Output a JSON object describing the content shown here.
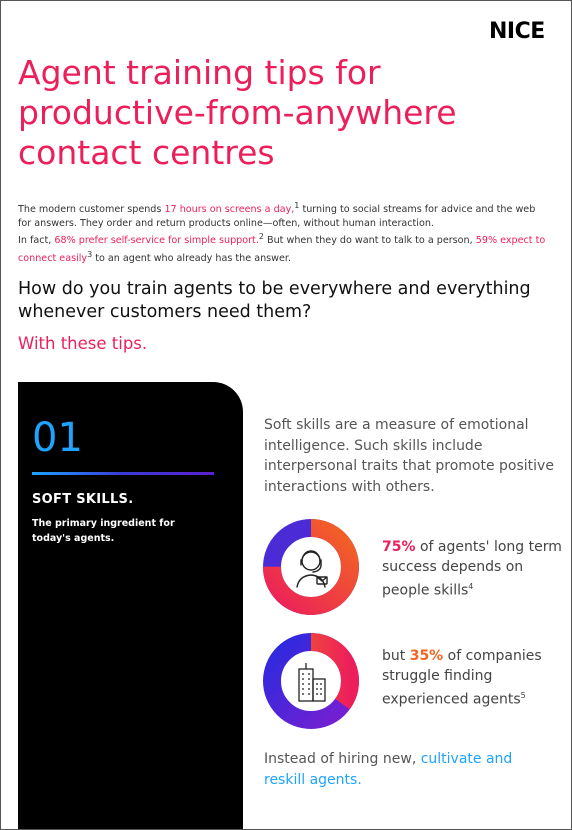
{
  "logo": {
    "text": "NICE"
  },
  "title": {
    "line1": "Agent training tips for",
    "line2": "productive-from-anywhere",
    "line3": "contact centres"
  },
  "intro": {
    "p1_a": "The modern customer spends ",
    "p1_hl": "17 hours on screens a day,",
    "p1_sup": "1",
    "p1_b": " turning to social streams for advice and the web for answers. They order and return products online—often, without human interaction.",
    "p2_a": "In fact, ",
    "p2_hl1": "68% prefer self-service for simple support.",
    "p2_sup1": "2",
    "p2_b": " But when they do want to talk to a person, ",
    "p2_hl2": "59% expect to connect easily",
    "p2_sup2": "3",
    "p2_c": " to an agent who already has the answer."
  },
  "question": "How do you train agents to be everywhere and everything whenever customers need them?",
  "tips_label": "With these tips.",
  "tip": {
    "number": "01",
    "heading": "SOFT SKILLS.",
    "subheading": "The primary ingredient for today's agents.",
    "description": "Soft skills are a measure of emotional intelligence. Such skills include interpersonal traits that promote positive interactions with others.",
    "stat1": {
      "pct": "75%",
      "text": " of agents' long term success depends on people skills",
      "sup": "4",
      "value": 75
    },
    "stat2": {
      "prefix": "but ",
      "pct": "35%",
      "text": " of companies struggle finding experienced agents",
      "sup": "5",
      "value": 35
    },
    "cta_a": "Instead of hiring new, ",
    "cta_hl": "cultivate and reskill agents."
  },
  "colors": {
    "pink": "#ec1f5b",
    "orange": "#f26522",
    "blue": "#1ea3ff",
    "purple": "#4b2bd6",
    "navy": "#2a2adf"
  },
  "icons": {
    "donut1": "headset-agent-icon",
    "donut2": "office-building-icon"
  }
}
